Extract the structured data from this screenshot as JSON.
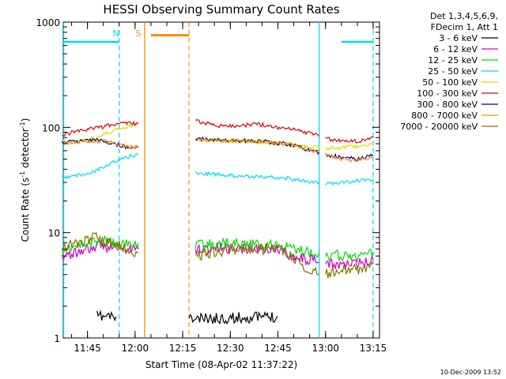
{
  "chart_data": {
    "type": "line",
    "title": "HESSI Observing Summary Count Rates",
    "xlabel": "Start Time (08-Apr-02 11:37:22)",
    "ylabel": "Count Rate (s-1 detector-1)",
    "ylabel_parts": {
      "base": "Count Rate (s",
      "sup1": "-1",
      "mid": " detector",
      "sup2": "-1",
      "end": ")"
    },
    "y_scale": "log",
    "ylim": [
      1,
      1000
    ],
    "y_ticks": [
      1,
      10,
      100,
      1000
    ],
    "y_tick_labels": [
      "1",
      "10",
      "100",
      "1000"
    ],
    "xlim": [
      "11:37:22",
      "13:17:00"
    ],
    "x_ticks": [
      "11:45",
      "12:00",
      "12:15",
      "12:30",
      "12:45",
      "13:00",
      "13:15"
    ],
    "legend": {
      "placement": "outside-right",
      "header": [
        "Det 1,3,4,5,6,9,",
        "FDecim 1, Att 1"
      ]
    },
    "date_stamp": "10-Dec-2009 13:52",
    "annotations": [
      {
        "text": "N",
        "time": "11:54",
        "color": "#00d8ff"
      },
      {
        "text": "S",
        "time": "12:01",
        "color": "#ff8c00"
      }
    ],
    "night_markers": {
      "color": "#00d8ff",
      "solid": [
        "11:37:30",
        "12:58:00"
      ],
      "dashed": [
        "11:55:00",
        "13:15:00"
      ],
      "bar_y": 650,
      "bar_spans": [
        [
          "11:37:30",
          "11:55:00"
        ],
        [
          "13:05:00",
          "13:15:00"
        ]
      ]
    },
    "saa_markers": {
      "color": "#ff8c00",
      "solid": [
        "12:03:00"
      ],
      "dashed": [
        "12:17:00"
      ],
      "bar_y": 750,
      "bar_span": [
        "12:05:00",
        "12:17:00"
      ]
    },
    "series": [
      {
        "name": "3 - 6 keV",
        "color": "#000000",
        "segments": [
          [
            [
              "11:48",
              1.6
            ],
            [
              "11:54",
              1.6
            ]
          ],
          [
            [
              "12:17",
              1.5
            ],
            [
              "12:45",
              1.6
            ]
          ]
        ]
      },
      {
        "name": "6 - 12 keV",
        "color": "#cc00cc",
        "segments": [
          [
            [
              "11:37",
              6
            ],
            [
              "11:45",
              7
            ],
            [
              "11:50",
              7.5
            ],
            [
              "11:55",
              7
            ],
            [
              "12:00",
              7
            ],
            [
              "12:01",
              7
            ]
          ],
          [
            [
              "12:19",
              7
            ],
            [
              "12:30",
              7.2
            ],
            [
              "12:45",
              7
            ],
            [
              "12:50",
              6
            ],
            [
              "12:55",
              5.5
            ],
            [
              "12:58",
              5.2
            ]
          ],
          [
            [
              "13:00",
              5
            ],
            [
              "13:05",
              5
            ],
            [
              "13:10",
              5
            ],
            [
              "13:15",
              5.5
            ]
          ]
        ]
      },
      {
        "name": "12 - 25 keV",
        "color": "#00dd00",
        "segments": [
          [
            [
              "11:37",
              7
            ],
            [
              "11:45",
              8
            ],
            [
              "11:50",
              8.5
            ],
            [
              "11:55",
              7.5
            ],
            [
              "12:00",
              8
            ],
            [
              "12:01",
              8
            ]
          ],
          [
            [
              "12:19",
              7.5
            ],
            [
              "12:30",
              8
            ],
            [
              "12:45",
              7.5
            ],
            [
              "12:50",
              7
            ],
            [
              "12:55",
              6.5
            ],
            [
              "12:58",
              6.5
            ]
          ],
          [
            [
              "13:00",
              6.2
            ],
            [
              "13:05",
              6
            ],
            [
              "13:10",
              6
            ],
            [
              "13:15",
              6.5
            ]
          ]
        ]
      },
      {
        "name": "25 - 50 keV",
        "color": "#00d8ff",
        "segments": [
          [
            [
              "11:37",
              33
            ],
            [
              "11:42",
              35
            ],
            [
              "11:47",
              38
            ],
            [
              "11:52",
              45
            ],
            [
              "11:57",
              52
            ],
            [
              "12:01",
              55
            ]
          ],
          [
            [
              "12:19",
              37
            ],
            [
              "12:30",
              35
            ],
            [
              "12:40",
              34
            ],
            [
              "12:48",
              33
            ],
            [
              "12:55",
              30
            ],
            [
              "12:58",
              30
            ]
          ],
          [
            [
              "13:00",
              29
            ],
            [
              "13:05",
              30
            ],
            [
              "13:10",
              31
            ],
            [
              "13:15",
              32
            ]
          ]
        ]
      },
      {
        "name": "50 - 100 keV",
        "color": "#dddd00",
        "segments": [
          [
            [
              "11:37",
              72
            ],
            [
              "11:42",
              74
            ],
            [
              "11:47",
              78
            ],
            [
              "11:52",
              90
            ],
            [
              "11:57",
              100
            ],
            [
              "12:01",
              108
            ]
          ],
          [
            [
              "12:19",
              75
            ],
            [
              "12:30",
              74
            ],
            [
              "12:40",
              73
            ],
            [
              "12:50",
              68
            ],
            [
              "12:55",
              65
            ],
            [
              "12:58",
              65
            ]
          ],
          [
            [
              "13:00",
              63
            ],
            [
              "13:05",
              64
            ],
            [
              "13:10",
              66
            ],
            [
              "13:15",
              68
            ]
          ]
        ]
      },
      {
        "name": "100 - 300 keV",
        "color": "#e00000",
        "segments": [
          [
            [
              "11:37",
              85
            ],
            [
              "11:42",
              92
            ],
            [
              "11:47",
              98
            ],
            [
              "11:52",
              105
            ],
            [
              "11:57",
              110
            ],
            [
              "12:01",
              108
            ]
          ],
          [
            [
              "12:19",
              115
            ],
            [
              "12:25",
              105
            ],
            [
              "12:33",
              102
            ],
            [
              "12:38",
              108
            ],
            [
              "12:45",
              100
            ],
            [
              "12:50",
              95
            ],
            [
              "12:55",
              88
            ],
            [
              "12:58",
              82
            ]
          ],
          [
            [
              "13:00",
              78
            ],
            [
              "13:05",
              75
            ],
            [
              "13:10",
              74
            ],
            [
              "13:15",
              80
            ]
          ]
        ]
      },
      {
        "name": "300 - 800 keV",
        "color": "#000090",
        "segments": [
          [
            [
              "11:37",
              72
            ],
            [
              "11:42",
              74
            ],
            [
              "11:47",
              76
            ],
            [
              "11:52",
              72
            ],
            [
              "11:57",
              65
            ],
            [
              "12:01",
              64
            ]
          ],
          [
            [
              "12:19",
              78
            ],
            [
              "12:30",
              75
            ],
            [
              "12:40",
              74
            ],
            [
              "12:50",
              68
            ],
            [
              "12:55",
              60
            ],
            [
              "12:58",
              58
            ]
          ],
          [
            [
              "13:00",
              55
            ],
            [
              "13:05",
              52
            ],
            [
              "13:10",
              50
            ],
            [
              "13:15",
              55
            ]
          ]
        ]
      },
      {
        "name": "800 - 7000 keV",
        "color": "#ff8c00",
        "segments": [
          [
            [
              "11:37",
              70
            ],
            [
              "11:42",
              72
            ],
            [
              "11:47",
              74
            ],
            [
              "11:52",
              73
            ],
            [
              "11:57",
              66
            ],
            [
              "12:01",
              65
            ]
          ],
          [
            [
              "12:19",
              76
            ],
            [
              "12:30",
              75
            ],
            [
              "12:40",
              73
            ],
            [
              "12:50",
              68
            ],
            [
              "12:55",
              60
            ],
            [
              "12:58",
              58
            ]
          ],
          [
            [
              "13:00",
              55
            ],
            [
              "13:05",
              50
            ],
            [
              "13:10",
              49
            ],
            [
              "13:15",
              52
            ]
          ]
        ]
      },
      {
        "name": "7000 - 20000 keV",
        "color": "#887000",
        "segments": [
          [
            [
              "11:37",
              7
            ],
            [
              "11:42",
              8
            ],
            [
              "11:47",
              9
            ],
            [
              "11:52",
              8
            ],
            [
              "11:57",
              7
            ],
            [
              "12:01",
              6.5
            ]
          ],
          [
            [
              "12:19",
              6
            ],
            [
              "12:25",
              6.5
            ],
            [
              "12:30",
              7
            ],
            [
              "12:40",
              7
            ],
            [
              "12:47",
              6.8
            ],
            [
              "12:52",
              5
            ],
            [
              "12:58",
              4
            ]
          ],
          [
            [
              "13:00",
              4
            ],
            [
              "13:05",
              4.5
            ],
            [
              "13:10",
              4.5
            ],
            [
              "13:15",
              5
            ]
          ]
        ]
      }
    ]
  }
}
